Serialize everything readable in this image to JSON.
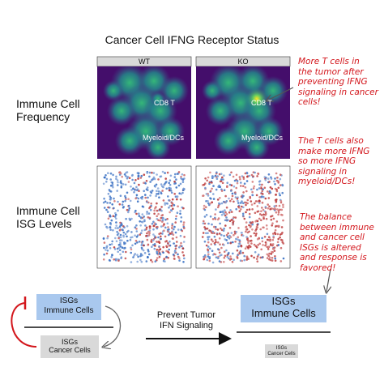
{
  "title": "Cancer Cell IFNG Receptor Status",
  "panels": [
    "WT",
    "KO"
  ],
  "row_labels": [
    [
      "Immune Cell",
      "Frequency"
    ],
    [
      "Immune Cell",
      "ISG Levels"
    ]
  ],
  "density_labels": {
    "cd8": "CD8 T",
    "myeloid": "Myeloid/DCs"
  },
  "annotations": [
    [
      "More T cells in",
      "the tumor after",
      "preventing IFNG",
      "signaling in cancer",
      "cells!"
    ],
    [
      "The T cells also",
      "make more IFNG",
      "so more IFNG",
      "signaling in",
      "myeloid/DCs!"
    ],
    [
      "The balance",
      "between immune",
      "and cancer cell",
      "ISGs is altered",
      "and response is",
      "favored!"
    ]
  ],
  "before": {
    "immune": [
      "ISGs",
      "Immune Cells"
    ],
    "cancer": [
      "ISGs",
      "Cancer Cells"
    ]
  },
  "arrow_label": [
    "Prevent Tumor",
    "IFN Signaling"
  ],
  "after": {
    "immune": [
      "ISGs",
      "Immune Cells"
    ],
    "cancer": [
      "ISGs",
      "Cancer Cells"
    ]
  }
}
